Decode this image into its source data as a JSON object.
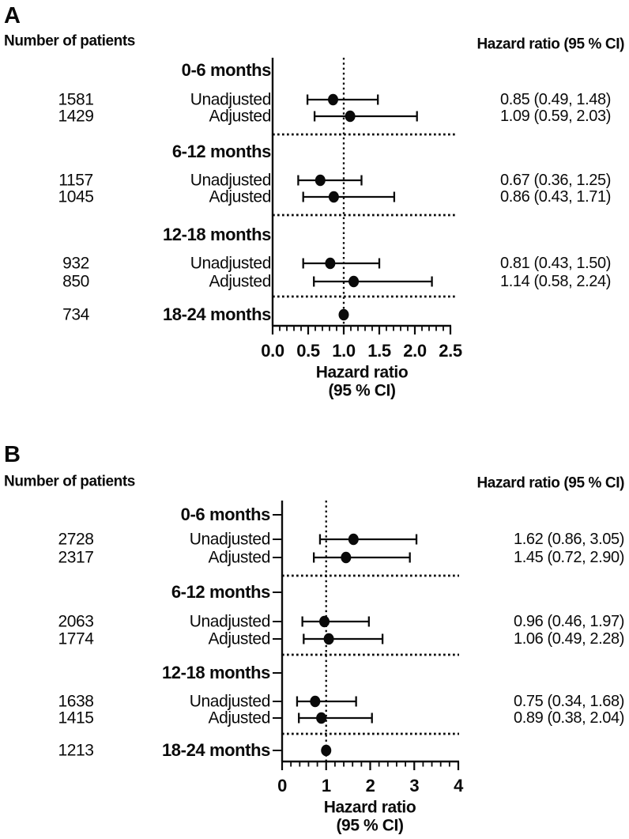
{
  "figure": {
    "background": "#ffffff",
    "ink_color": "#0a0a0a",
    "xlabel_line1": "Hazard ratio",
    "xlabel_line2": "(95 % CI)"
  },
  "chart_data": [
    {
      "type": "forest",
      "panel_label": "A",
      "left_header": "Number of patients",
      "right_header": "Hazard ratio (95 % CI)",
      "xlabel_line1": "Hazard ratio",
      "xlabel_line2": "(95 % CI)",
      "axis": {
        "min": 0,
        "max": 2.5,
        "major_ticks": [
          0,
          0.5,
          1.0,
          1.5,
          2.0,
          2.5
        ],
        "tick_labels": [
          "0.0",
          "0.5",
          "1.0",
          "1.5",
          "2.0",
          "2.5"
        ],
        "minor_step": 0.1,
        "reference_line_x": 1.0,
        "grid": false
      },
      "groups": [
        {
          "label": "0-6 months",
          "rows": [
            {
              "n": "1581",
              "label": "Unadjusted",
              "hr": 0.85,
              "lo": 0.49,
              "hi": 1.48,
              "text": "0.85 (0.49, 1.48)"
            },
            {
              "n": "1429",
              "label": "Adjusted",
              "hr": 1.09,
              "lo": 0.59,
              "hi": 2.03,
              "text": "1.09 (0.59, 2.03)"
            }
          ]
        },
        {
          "label": "6-12 months",
          "rows": [
            {
              "n": "1157",
              "label": "Unadjusted",
              "hr": 0.67,
              "lo": 0.36,
              "hi": 1.25,
              "text": "0.67 (0.36, 1.25)"
            },
            {
              "n": "1045",
              "label": "Adjusted",
              "hr": 0.86,
              "lo": 0.43,
              "hi": 1.71,
              "text": "0.86 (0.43, 1.71)"
            }
          ]
        },
        {
          "label": "12-18 months",
          "rows": [
            {
              "n": "932",
              "label": "Unadjusted",
              "hr": 0.81,
              "lo": 0.43,
              "hi": 1.5,
              "text": "0.81 (0.43, 1.50)"
            },
            {
              "n": "850",
              "label": "Adjusted",
              "hr": 1.14,
              "lo": 0.58,
              "hi": 2.24,
              "text": "1.14 (0.58, 2.24)"
            }
          ]
        },
        {
          "label": "18-24 months",
          "n": "734",
          "point": 1.0,
          "rows": []
        }
      ]
    },
    {
      "type": "forest",
      "panel_label": "B",
      "left_header": "Number of patients",
      "right_header": "Hazard ratio (95 % CI)",
      "xlabel_line1": "Hazard ratio",
      "xlabel_line2": "(95 % CI)",
      "axis": {
        "min": 0,
        "max": 4,
        "major_ticks": [
          0,
          1,
          2,
          3,
          4
        ],
        "tick_labels": [
          "0",
          "1",
          "2",
          "3",
          "4"
        ],
        "minor_step": 0.2,
        "reference_line_x": 1.0,
        "grid": false
      },
      "groups": [
        {
          "label": "0-6 months",
          "rows": [
            {
              "n": "2728",
              "label": "Unadjusted",
              "hr": 1.62,
              "lo": 0.86,
              "hi": 3.05,
              "text": "1.62 (0.86, 3.05)"
            },
            {
              "n": "2317",
              "label": "Adjusted",
              "hr": 1.45,
              "lo": 0.72,
              "hi": 2.9,
              "text": "1.45 (0.72, 2.90)"
            }
          ]
        },
        {
          "label": "6-12 months",
          "rows": [
            {
              "n": "2063",
              "label": "Unadjusted",
              "hr": 0.96,
              "lo": 0.46,
              "hi": 1.97,
              "text": "0.96 (0.46, 1.97)"
            },
            {
              "n": "1774",
              "label": "Adjusted",
              "hr": 1.06,
              "lo": 0.49,
              "hi": 2.28,
              "text": "1.06 (0.49, 2.28)"
            }
          ]
        },
        {
          "label": "12-18 months",
          "rows": [
            {
              "n": "1638",
              "label": "Unadjusted",
              "hr": 0.75,
              "lo": 0.34,
              "hi": 1.68,
              "text": "0.75 (0.34, 1.68)"
            },
            {
              "n": "1415",
              "label": "Adjusted",
              "hr": 0.89,
              "lo": 0.38,
              "hi": 2.04,
              "text": "0.89 (0.38, 2.04)"
            }
          ]
        },
        {
          "label": "18-24 months",
          "n": "1213",
          "point": 1.0,
          "rows": []
        }
      ]
    }
  ]
}
